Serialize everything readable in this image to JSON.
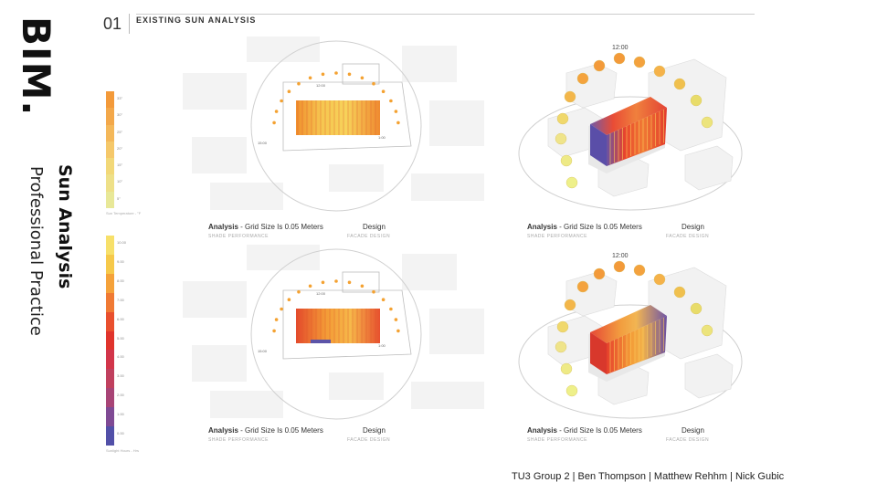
{
  "brand": "BIM.",
  "slide_title": "Sun Analysis",
  "slide_subtitle": "Professional Practice",
  "section": {
    "number": "01",
    "title": "EXISTING SUN ANALYSIS"
  },
  "legends": [
    {
      "ticks": [
        "33°",
        "30°",
        "25°",
        "20°",
        "15°",
        "10°",
        "5°"
      ],
      "caption": "Sun Temperature - °F",
      "colors": [
        "#f39a3a",
        "#f3a84a",
        "#f4b85a",
        "#f5c86a",
        "#f2d878",
        "#eee088",
        "#e8e898"
      ]
    },
    {
      "ticks": [
        "10.00",
        "9.00",
        "8.00",
        "7.00",
        "6.00",
        "5.00",
        "4.00",
        "3.00",
        "2.00",
        "1.00",
        "0.00"
      ],
      "caption": "Sunlight Hours - Hrs",
      "colors": [
        "#f7e06a",
        "#f6c94a",
        "#f5a23a",
        "#f07a34",
        "#e9502e",
        "#e0342c",
        "#d2354a",
        "#c0405e",
        "#a84476",
        "#7f4a94",
        "#5250a8"
      ]
    }
  ],
  "panels": [
    {
      "analysis": "Analysis",
      "grid": " - Grid Size Is 0.05 Meters",
      "analysis_sub": "SHADE PERFORMANCE",
      "design": "Design",
      "design_sub": "FACADE DESIGN",
      "labels": [
        "12:00",
        "15:00",
        "1:00"
      ]
    },
    {
      "analysis": "Analysis",
      "grid": " - Grid Size Is 0.05 Meters",
      "analysis_sub": "SHADE PERFORMANCE",
      "design": "Design",
      "design_sub": "FACADE DESIGN",
      "labels": [
        "12:00"
      ]
    },
    {
      "analysis": "Analysis",
      "grid": " - Grid Size Is 0.05 Meters",
      "analysis_sub": "SHADE PERFORMANCE",
      "design": "Design",
      "design_sub": "FACADE DESIGN",
      "labels": [
        "12:00",
        "15:00",
        "1:00"
      ]
    },
    {
      "analysis": "Analysis",
      "grid": " - Grid Size Is 0.05 Meters",
      "analysis_sub": "SHADE PERFORMANCE",
      "design": "Design",
      "design_sub": "FACADE DESIGN",
      "labels": [
        "12:00"
      ]
    }
  ],
  "footer": "TU3 Group 2  |  Ben Thompson  | Matthew Rehhm  |  Nick Gubic"
}
